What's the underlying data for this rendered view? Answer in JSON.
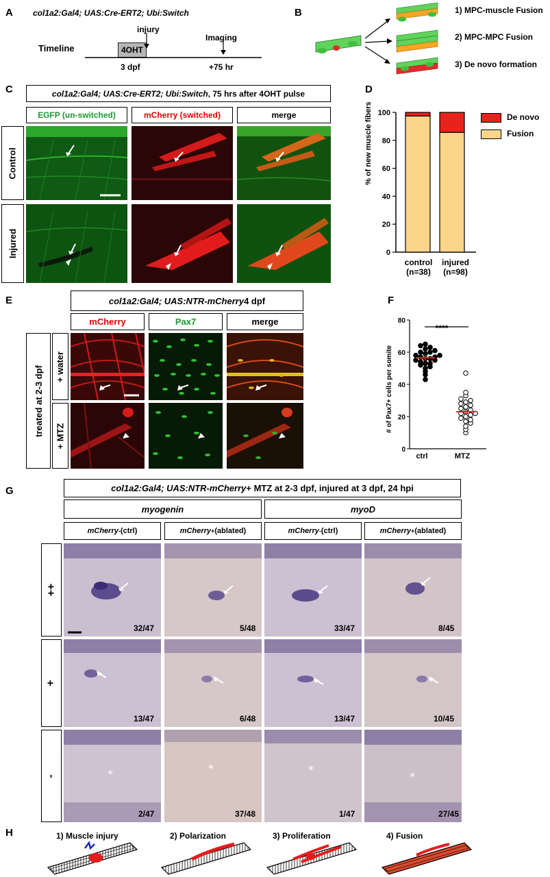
{
  "panelA": {
    "label": "A",
    "genotype": "col1a2:Gal4; UAS:Cre-ERT2; Ubi:Switch",
    "timeline_label": "Timeline",
    "treatment": "4OHT",
    "injury": "injury",
    "imaging": "Imaging",
    "t1": "3 dpf",
    "t2": "+75 hr"
  },
  "panelB": {
    "label": "B",
    "outcomes": [
      "1) MPC-muscle Fusion",
      "2) MPC-MPC Fusion",
      "3) De novo formation"
    ]
  },
  "panelC": {
    "label": "C",
    "title_italic": "col1a2:Gal4; UAS:Cre-ERT2; Ubi:Switch",
    "title_rest": ", 75 hrs after 4OHT pulse",
    "col_egfp": "EGFP (un-switched)",
    "col_mcherry": "mCherry (switched)",
    "col_merge": "merge",
    "rows": [
      "Control",
      "Injured"
    ]
  },
  "panelD": {
    "label": "D",
    "chart_data": {
      "type": "bar",
      "stacked": true,
      "categories": [
        "control",
        "injured"
      ],
      "category_notes": [
        "(n=38)",
        "(n=98)"
      ],
      "series": [
        {
          "name": "Fusion",
          "values": [
            97.4,
            85.7
          ],
          "color": "#fad58a"
        },
        {
          "name": "De novo",
          "values": [
            2.6,
            14.3
          ],
          "color": "#e8221c"
        }
      ],
      "ylabel": "% of new muscle fibers",
      "ylim": [
        0,
        100
      ],
      "yticks": [
        0,
        20,
        40,
        60,
        80,
        100
      ],
      "legend": "right"
    }
  },
  "panelE": {
    "label": "E",
    "title_italic": "col1a2:Gal4; UAS:NTR-mCherry",
    "title_rest": " 4 dpf",
    "col_mcherry": "mCherry",
    "col_pax7": "Pax7",
    "col_merge": "merge",
    "outer_row": "treated at 2-3 dpf",
    "rows": [
      "+ water",
      "+ MTZ"
    ]
  },
  "panelF": {
    "label": "F",
    "chart_data": {
      "type": "scatter",
      "categories": [
        "ctrl",
        "MTZ"
      ],
      "ylabel": "# of Pax7+ cells per somite",
      "ylim": [
        0,
        80
      ],
      "yticks": [
        0,
        20,
        40,
        60,
        80
      ],
      "significance": "****",
      "series": [
        {
          "name": "ctrl",
          "filled": true,
          "mean": 56.5,
          "values": [
            43,
            46,
            48,
            50,
            51,
            52,
            53,
            53,
            54,
            55,
            55,
            56,
            56,
            57,
            57,
            58,
            58,
            59,
            60,
            60,
            61,
            62,
            63,
            64,
            65
          ]
        },
        {
          "name": "MTZ",
          "filled": false,
          "mean": 23,
          "values": [
            10,
            12,
            14,
            16,
            17,
            18,
            19,
            20,
            21,
            22,
            22,
            23,
            24,
            25,
            26,
            27,
            28,
            29,
            30,
            31,
            33,
            35,
            47
          ]
        }
      ]
    }
  },
  "panelG": {
    "label": "G",
    "title_italic": "col1a2:Gal4; UAS:NTR-mCherry",
    "title_rest": " + MTZ at 2-3 dpf, injured at 3 dpf, 24 hpi",
    "gene1": "myogenin",
    "gene2": "myoD",
    "col_ctrl_gene": "mCherry",
    "col_ctrl_sup": "-",
    "col_ctrl_rest": " (ctrl)",
    "col_abl_gene": "mCherry",
    "col_abl_sup": "+",
    "col_abl_rest": " (ablated)",
    "rows": [
      "++",
      "+",
      "-"
    ],
    "counts": [
      [
        "32/47",
        "5/48",
        "33/47",
        "8/45"
      ],
      [
        "13/47",
        "6/48",
        "13/47",
        "10/45"
      ],
      [
        "2/47",
        "37/48",
        "1/47",
        "27/45"
      ]
    ]
  },
  "panelH": {
    "label": "H",
    "steps": [
      "1) Muscle injury",
      "2) Polarization",
      "3) Proliferation",
      "4) Fusion"
    ]
  },
  "colors": {
    "egfp": "#1a9a2e",
    "mcherry": "#e00000",
    "fusion": "#fad58a",
    "denovo": "#e8221c"
  }
}
